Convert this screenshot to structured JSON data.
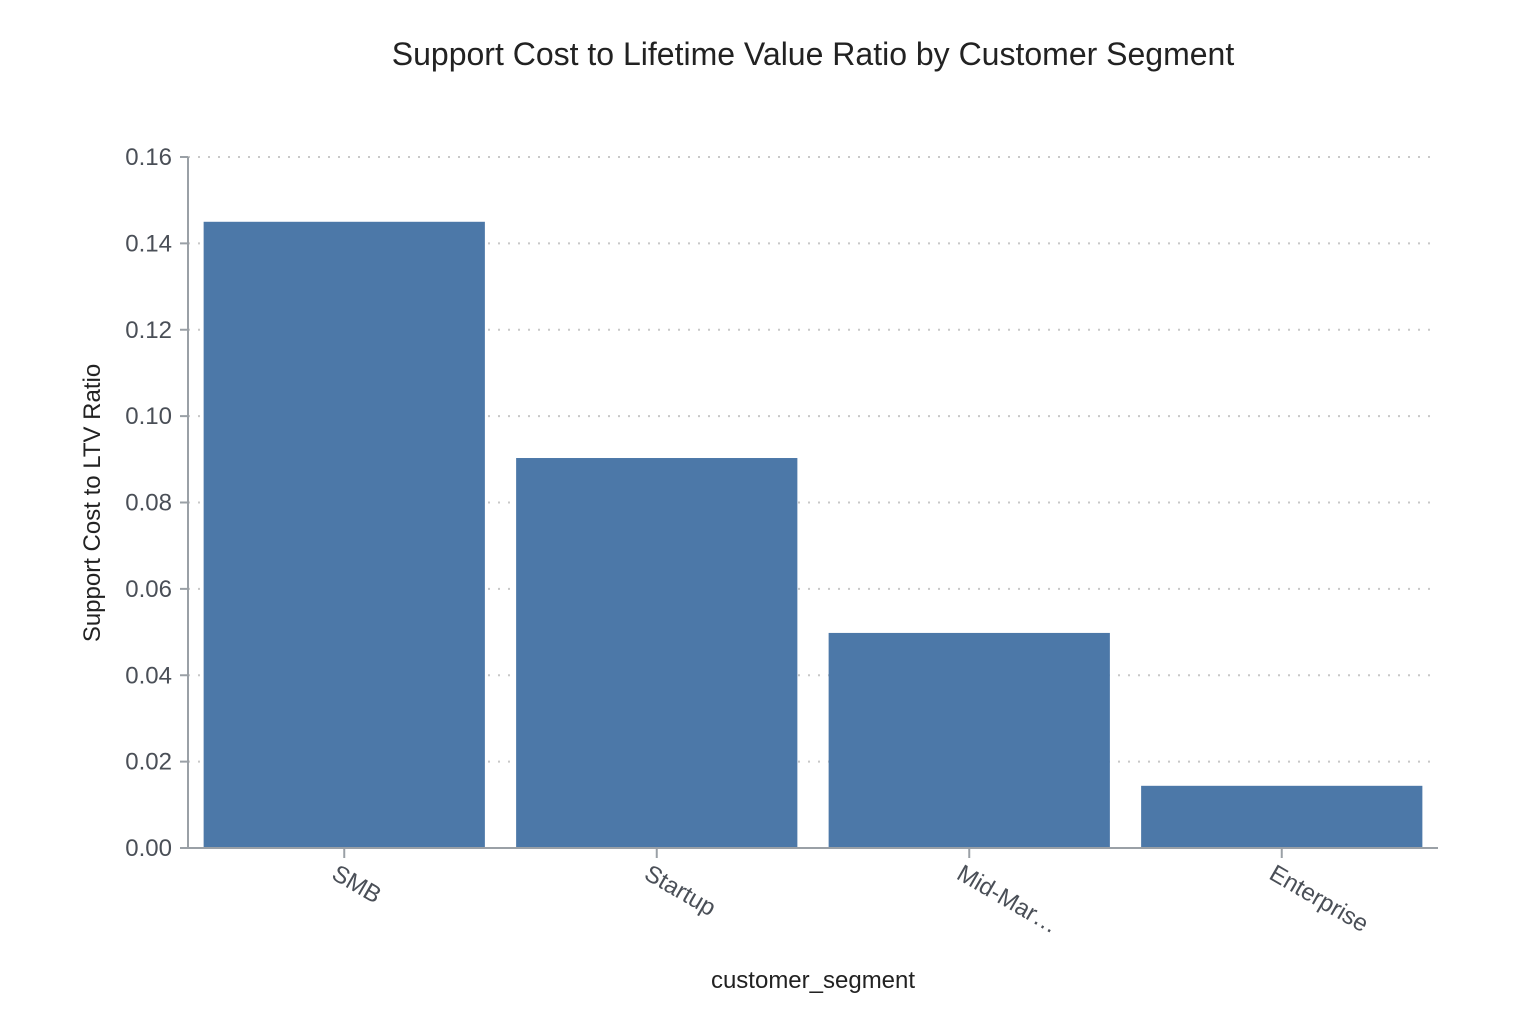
{
  "chart_data": {
    "type": "bar",
    "title": "Support Cost to Lifetime Value Ratio by Customer Segment",
    "xlabel": "customer_segment",
    "ylabel": "Support Cost to LTV Ratio",
    "categories": [
      "SMB",
      "Startup",
      "Mid-Mar…",
      "Enterprise"
    ],
    "values": [
      0.145,
      0.0903,
      0.0498,
      0.0144
    ],
    "ylim": [
      0,
      0.16
    ],
    "yticks": [
      "0.00",
      "0.02",
      "0.04",
      "0.06",
      "0.08",
      "0.10",
      "0.12",
      "0.14",
      "0.16"
    ],
    "grid": "horizontal dotted",
    "legend": "none",
    "bar_color": "#4c78a8"
  }
}
